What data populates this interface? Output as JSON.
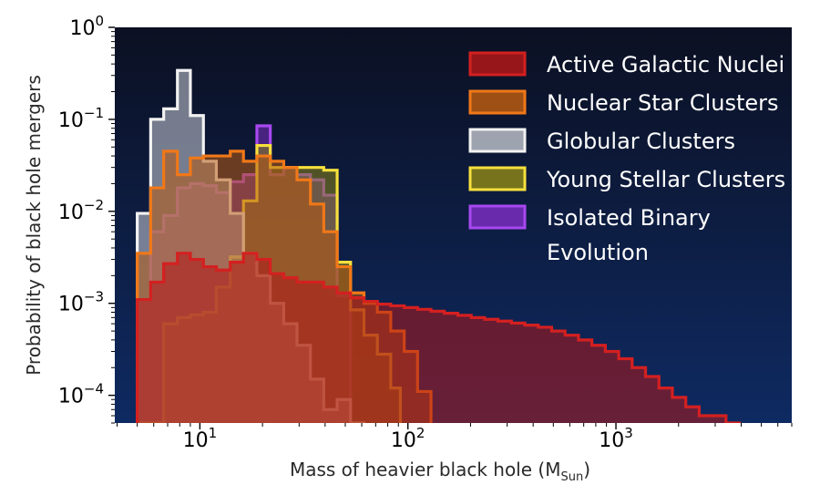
{
  "chart_data": {
    "type": "histogram",
    "title": "",
    "xlabel": "Mass of heavier black hole (M",
    "xlabel_sub": "Sun",
    "xlabel_close": ")",
    "ylabel": "Probability of black hole mergers",
    "xscale": "log",
    "yscale": "log",
    "xlim": [
      3.9,
      7000
    ],
    "ylim": [
      5e-05,
      1
    ],
    "background": {
      "top": "#0c1022",
      "bottom": "#0e2a62"
    },
    "x_ticks": [
      {
        "value": 10,
        "base": "10",
        "exp": "1"
      },
      {
        "value": 100,
        "base": "10",
        "exp": "2"
      },
      {
        "value": 1000,
        "base": "10",
        "exp": "3"
      }
    ],
    "y_ticks": [
      {
        "value": 1,
        "base": "10",
        "exp": "0"
      },
      {
        "value": 0.1,
        "base": "10",
        "exp": "−1"
      },
      {
        "value": 0.01,
        "base": "10",
        "exp": "−2"
      },
      {
        "value": 0.001,
        "base": "10",
        "exp": "−3"
      },
      {
        "value": 0.0001,
        "base": "10",
        "exp": "−4"
      }
    ],
    "legend_position": "top-right",
    "series": [
      {
        "name": "Active Galactic Nuclei",
        "edge_color": "#d42020",
        "fill_color": "#b01818",
        "fill_opacity": 0.55,
        "bins": [
          [
            5.0,
            0.0011
          ],
          [
            5.8,
            0.0017
          ],
          [
            6.7,
            0.0027
          ],
          [
            7.8,
            0.0035
          ],
          [
            9.0,
            0.003
          ],
          [
            10.4,
            0.0025
          ],
          [
            12.0,
            0.0023
          ],
          [
            14.0,
            0.0028
          ],
          [
            16.2,
            0.0035
          ],
          [
            18.8,
            0.003
          ],
          [
            21.8,
            0.0021
          ],
          [
            25.3,
            0.0019
          ],
          [
            29.3,
            0.0017
          ],
          [
            34.0,
            0.0017
          ],
          [
            39.4,
            0.0015
          ],
          [
            45.7,
            0.0013
          ],
          [
            53.0,
            0.00115
          ],
          [
            61.5,
            0.00105
          ],
          [
            71.3,
            0.00098
          ],
          [
            82.7,
            0.00094
          ],
          [
            96.0,
            0.0009
          ],
          [
            111.3,
            0.00086
          ],
          [
            129.1,
            0.00082
          ],
          [
            149.7,
            0.00078
          ],
          [
            173.7,
            0.00074
          ],
          [
            201.5,
            0.0007
          ],
          [
            233.7,
            0.00067
          ],
          [
            271.1,
            0.00064
          ],
          [
            314.5,
            0.00061
          ],
          [
            364.8,
            0.00058
          ],
          [
            423.2,
            0.00055
          ],
          [
            490.9,
            0.0005
          ],
          [
            569.5,
            0.00045
          ],
          [
            660.6,
            0.0004
          ],
          [
            766.3,
            0.00035
          ],
          [
            888.9,
            0.0003
          ],
          [
            1031.2,
            0.00025
          ],
          [
            1196.2,
            0.0002
          ],
          [
            1387.6,
            0.00016
          ],
          [
            1609.7,
            0.00012
          ],
          [
            1867.2,
            9.5e-05
          ],
          [
            2166.0,
            7.5e-05
          ],
          [
            2512.6,
            6e-05
          ],
          [
            2914.6,
            6e-05
          ],
          [
            3381.0,
            5e-05
          ]
        ],
        "last_edge": 3922.0
      },
      {
        "name": "Nuclear Star Clusters",
        "edge_color": "#f07818",
        "fill_color": "#b85a10",
        "fill_opacity": 0.55,
        "bins": [
          [
            5.0,
            0.0035
          ],
          [
            5.8,
            0.018
          ],
          [
            6.7,
            0.045
          ],
          [
            7.8,
            0.025
          ],
          [
            9.0,
            0.038
          ],
          [
            10.4,
            0.04
          ],
          [
            12.0,
            0.04
          ],
          [
            14.0,
            0.045
          ],
          [
            16.2,
            0.035
          ],
          [
            18.8,
            0.04
          ],
          [
            21.8,
            0.035
          ],
          [
            25.3,
            0.03
          ],
          [
            29.3,
            0.022
          ],
          [
            34.0,
            0.012
          ],
          [
            39.4,
            0.006
          ],
          [
            45.7,
            0.0025
          ],
          [
            53.0,
            0.0013
          ],
          [
            61.5,
            0.001
          ],
          [
            71.3,
            0.0008
          ],
          [
            82.7,
            0.0005
          ],
          [
            96.0,
            0.0003
          ],
          [
            111.3,
            0.00011
          ]
        ],
        "last_edge": 129.1
      },
      {
        "name": "Globular Clusters",
        "edge_color": "#f2f2f2",
        "fill_color": "#b8bcc6",
        "fill_opacity": 0.62,
        "bins": [
          [
            5.0,
            0.0095
          ],
          [
            5.8,
            0.1
          ],
          [
            6.7,
            0.13
          ],
          [
            7.8,
            0.34
          ],
          [
            9.0,
            0.11
          ],
          [
            10.4,
            0.035
          ],
          [
            12.0,
            0.022
          ],
          [
            14.0,
            0.0095
          ],
          [
            16.2,
            0.0035
          ],
          [
            18.8,
            0.002
          ],
          [
            21.8,
            0.001
          ],
          [
            25.3,
            0.0006
          ],
          [
            29.3,
            0.00035
          ],
          [
            34.0,
            0.00015
          ],
          [
            39.4,
            7e-05
          ],
          [
            45.7,
            9e-05
          ],
          [
            53.0,
            5e-05
          ]
        ],
        "last_edge": 61.5
      },
      {
        "name": "Young Stellar Clusters",
        "edge_color": "#f6e03c",
        "fill_color": "#8a8418",
        "fill_opacity": 0.55,
        "bins": [
          [
            5.0,
            5e-05
          ],
          [
            5.8,
            5e-05
          ],
          [
            6.7,
            0.0006
          ],
          [
            7.8,
            0.0007
          ],
          [
            9.0,
            0.00075
          ],
          [
            10.4,
            0.0008
          ],
          [
            12.0,
            0.0015
          ],
          [
            14.0,
            0.0032
          ],
          [
            16.2,
            0.013
          ],
          [
            18.8,
            0.052
          ],
          [
            21.8,
            0.03
          ],
          [
            25.3,
            0.03
          ],
          [
            29.3,
            0.03
          ],
          [
            34.0,
            0.03
          ],
          [
            39.4,
            0.028
          ],
          [
            45.7,
            0.0028
          ],
          [
            53.0,
            0.00085
          ],
          [
            61.5,
            0.00045
          ],
          [
            71.3,
            0.00028
          ],
          [
            82.7,
            0.00012
          ]
        ],
        "last_edge": 92.0
      },
      {
        "name": "Isolated Binary Evolution",
        "edge_color": "#a848f0",
        "fill_color": "#7a2ec0",
        "fill_opacity": 0.55,
        "bins": [
          [
            5.0,
            0.0011
          ],
          [
            5.8,
            0.006
          ],
          [
            6.7,
            0.009
          ],
          [
            7.8,
            0.018
          ],
          [
            9.0,
            0.02
          ],
          [
            10.4,
            0.019
          ],
          [
            12.0,
            0.016
          ],
          [
            14.0,
            0.021
          ],
          [
            16.2,
            0.025
          ],
          [
            18.8,
            0.085
          ],
          [
            21.8,
            0.025
          ],
          [
            25.3,
            0.03
          ],
          [
            29.3,
            0.025
          ],
          [
            34.0,
            0.022
          ],
          [
            39.4,
            0.015
          ],
          [
            45.7,
            0.0012
          ]
        ],
        "last_edge": 53.0
      }
    ]
  }
}
